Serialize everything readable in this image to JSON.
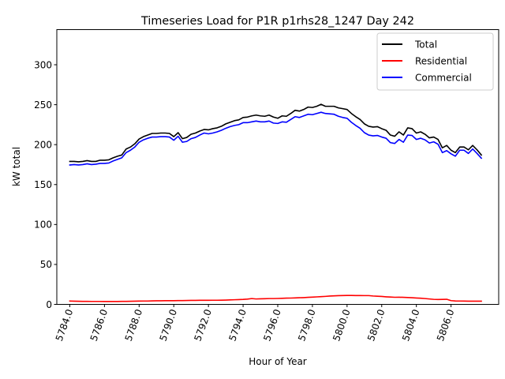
{
  "chart_data": {
    "type": "line",
    "title": "Timeseries Load for P1R p1rhs28_1247  Day 242",
    "xlabel": "Hour of Year",
    "ylabel": "kW total",
    "xlim": [
      5783.25,
      5808.75
    ],
    "ylim": [
      0,
      344
    ],
    "x_ticks": [
      5784,
      5786,
      5788,
      5790,
      5792,
      5794,
      5796,
      5798,
      5800,
      5802,
      5804,
      5806
    ],
    "x_tick_labels": [
      "5784.0",
      "5786.0",
      "5788.0",
      "5790.0",
      "5792.0",
      "5794.0",
      "5796.0",
      "5798.0",
      "5800.0",
      "5802.0",
      "5804.0",
      "5806.0"
    ],
    "y_ticks": [
      0,
      50,
      100,
      150,
      200,
      250,
      300
    ],
    "y_tick_labels": [
      "0",
      "50",
      "100",
      "150",
      "200",
      "250",
      "300"
    ],
    "legend": "top-right",
    "x": [
      5784.0,
      5784.25,
      5784.5,
      5784.75,
      5785.0,
      5785.25,
      5785.5,
      5785.75,
      5786.0,
      5786.25,
      5786.5,
      5786.75,
      5787.0,
      5787.25,
      5787.5,
      5787.75,
      5788.0,
      5788.25,
      5788.5,
      5788.75,
      5789.0,
      5789.25,
      5789.5,
      5789.75,
      5790.0,
      5790.25,
      5790.5,
      5790.75,
      5791.0,
      5791.25,
      5791.5,
      5791.75,
      5792.0,
      5792.25,
      5792.5,
      5792.75,
      5793.0,
      5793.25,
      5793.5,
      5793.75,
      5794.0,
      5794.25,
      5794.5,
      5794.75,
      5795.0,
      5795.25,
      5795.5,
      5795.75,
      5796.0,
      5796.25,
      5796.5,
      5796.75,
      5797.0,
      5797.25,
      5797.5,
      5797.75,
      5798.0,
      5798.25,
      5798.5,
      5798.75,
      5799.0,
      5799.25,
      5799.5,
      5799.75,
      5800.0,
      5800.25,
      5800.5,
      5800.75,
      5801.0,
      5801.25,
      5801.5,
      5801.75,
      5802.0,
      5802.25,
      5802.5,
      5802.75,
      5803.0,
      5803.25,
      5803.5,
      5803.75,
      5804.0,
      5804.25,
      5804.5,
      5804.75,
      5805.0,
      5805.25,
      5805.5,
      5805.75,
      5806.0,
      5806.25,
      5806.5,
      5806.75,
      5807.0,
      5807.25,
      5807.5,
      5807.75
    ],
    "series": [
      {
        "name": "Total",
        "color": "#000000",
        "values": [
          179,
          179,
          178.5,
          179,
          180,
          179,
          179,
          180.5,
          180.5,
          181,
          183.5,
          185.5,
          187,
          194.5,
          197,
          201,
          207,
          210,
          212,
          214,
          214,
          214.5,
          214.5,
          214,
          210,
          215,
          207.5,
          209,
          213,
          214.5,
          217,
          219,
          218.5,
          220,
          221,
          223,
          226,
          228,
          230,
          231,
          234,
          234.5,
          236,
          237,
          236,
          235.5,
          237,
          234.5,
          233,
          236,
          235.5,
          239,
          243,
          242,
          244,
          247,
          246.5,
          248,
          250.5,
          248,
          248,
          248,
          246,
          245,
          244,
          239,
          235,
          231.5,
          226,
          223,
          222,
          222.5,
          220,
          218,
          212,
          210.5,
          216,
          212,
          221,
          220,
          214.5,
          216,
          213,
          208.5,
          209.5,
          206.5,
          196,
          199,
          193,
          190,
          197,
          197,
          193.5,
          199,
          193.5,
          187
        ]
      },
      {
        "name": "Residential",
        "color": "#ff0000",
        "values": [
          4.2,
          4.0,
          3.9,
          3.8,
          3.8,
          3.7,
          3.7,
          3.7,
          3.6,
          3.6,
          3.6,
          3.6,
          3.8,
          3.8,
          3.9,
          4.0,
          4.1,
          4.2,
          4.2,
          4.4,
          4.5,
          4.5,
          4.6,
          4.6,
          4.6,
          4.8,
          4.8,
          4.9,
          5.0,
          5.0,
          5.1,
          5.1,
          5.1,
          5.2,
          5.2,
          5.3,
          5.4,
          5.6,
          5.8,
          6.0,
          6.2,
          6.6,
          7.3,
          6.8,
          7.0,
          7.1,
          7.3,
          7.3,
          7.4,
          7.6,
          7.8,
          7.9,
          8.1,
          8.3,
          8.5,
          8.8,
          9.1,
          9.4,
          9.7,
          10.0,
          10.4,
          10.7,
          10.9,
          11.1,
          11.2,
          11.2,
          11.1,
          11.1,
          11.0,
          11.0,
          10.5,
          10.2,
          9.9,
          9.5,
          9.2,
          8.9,
          9.0,
          8.8,
          8.6,
          8.3,
          8.0,
          7.7,
          7.3,
          6.8,
          6.3,
          6.1,
          6.2,
          6.4,
          4.7,
          4.3,
          4.2,
          4.1,
          4.0,
          4.0,
          4.0,
          4.0
        ]
      },
      {
        "name": "Commercial",
        "color": "#0000ff",
        "values": [
          174.5,
          175,
          174.5,
          175,
          176,
          175,
          175.5,
          176.5,
          176.5,
          177,
          179.5,
          181.5,
          183.5,
          190,
          193,
          197,
          203,
          206,
          208,
          209.5,
          209.5,
          210,
          210,
          209.5,
          205.5,
          210.5,
          203,
          204,
          207.5,
          209,
          212,
          214.5,
          213.5,
          214.5,
          216,
          218,
          220.5,
          222.5,
          224,
          225,
          227.5,
          227.5,
          228.5,
          229.5,
          228.5,
          228.5,
          229.5,
          227,
          226.5,
          228.5,
          228,
          231.5,
          235,
          234,
          236,
          238,
          237.5,
          239,
          240.5,
          239,
          238.5,
          238,
          235.5,
          234,
          233,
          228,
          224,
          220.5,
          215,
          212,
          211,
          211.5,
          209.5,
          208,
          202.5,
          201.5,
          206.5,
          203,
          212,
          211.5,
          206.5,
          208,
          206,
          202,
          203.5,
          200.5,
          190,
          192.5,
          188.5,
          185.5,
          193,
          193,
          189,
          194.5,
          189,
          183
        ]
      }
    ]
  }
}
